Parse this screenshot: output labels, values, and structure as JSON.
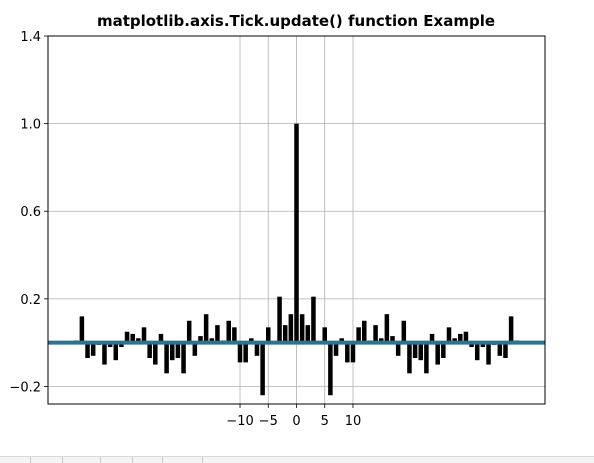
{
  "chart_data": {
    "type": "bar",
    "title": "matplotlib.axis.Tick.update() function Example",
    "xlabel": "",
    "ylabel": "",
    "xlim": [
      -44,
      44
    ],
    "ylim": [
      -0.28,
      1.4
    ],
    "xticks": [
      {
        "value": -10,
        "label": "−10"
      },
      {
        "value": -5,
        "label": "−5"
      },
      {
        "value": 0,
        "label": "0"
      },
      {
        "value": 5,
        "label": "5"
      },
      {
        "value": 10,
        "label": "10"
      }
    ],
    "yticks": [
      {
        "value": -0.2,
        "label": "−0.2"
      },
      {
        "value": 0.2,
        "label": "0.2"
      },
      {
        "value": 0.6,
        "label": "0.6"
      },
      {
        "value": 1.0,
        "label": "1.0"
      },
      {
        "value": 1.4,
        "label": "1.4"
      }
    ],
    "grid": true,
    "bar_color": "#000000",
    "hline": {
      "y": 0,
      "color": "#2d7193"
    },
    "bars": {
      "x": [
        -39,
        -38,
        -37,
        -36,
        -35,
        -34,
        -33,
        -32,
        -31,
        -30,
        -29,
        -28,
        -27,
        -26,
        -25,
        -24,
        -23,
        -22,
        -21,
        -20,
        -19,
        -18,
        -17,
        -16,
        -15,
        -14,
        -13,
        -12,
        -11,
        -10,
        -9,
        -8,
        -7,
        -6,
        -5,
        -4,
        -3,
        -2,
        -1,
        0,
        1,
        2,
        3,
        4,
        5,
        6,
        7,
        8,
        9,
        10,
        11,
        12,
        13,
        14,
        15,
        16,
        17,
        18,
        19,
        20,
        21,
        22,
        23,
        24,
        25,
        26,
        27,
        28,
        29,
        30,
        31,
        32,
        33,
        34,
        35,
        36,
        37,
        38,
        39
      ],
      "values": [
        0.01,
        0.12,
        -0.07,
        -0.06,
        -0.01,
        -0.1,
        -0.02,
        -0.08,
        -0.02,
        0.05,
        0.04,
        0.02,
        0.07,
        -0.07,
        -0.1,
        0.04,
        -0.14,
        -0.08,
        -0.07,
        -0.14,
        0.1,
        -0.06,
        0.03,
        0.13,
        0.02,
        0.08,
        0.01,
        0.1,
        0.07,
        -0.09,
        -0.09,
        0.02,
        -0.06,
        -0.24,
        0.07,
        0.0,
        0.21,
        0.08,
        0.13,
        1.0,
        0.13,
        0.08,
        0.21,
        0.0,
        0.07,
        -0.24,
        -0.06,
        0.02,
        -0.09,
        -0.09,
        0.07,
        0.1,
        0.01,
        0.08,
        0.02,
        0.13,
        0.03,
        -0.06,
        0.1,
        -0.14,
        -0.07,
        -0.08,
        -0.14,
        0.04,
        -0.1,
        -0.07,
        0.07,
        0.02,
        0.04,
        0.05,
        -0.02,
        -0.08,
        -0.02,
        -0.1,
        -0.01,
        -0.06,
        -0.07,
        0.12,
        0.01
      ]
    }
  }
}
